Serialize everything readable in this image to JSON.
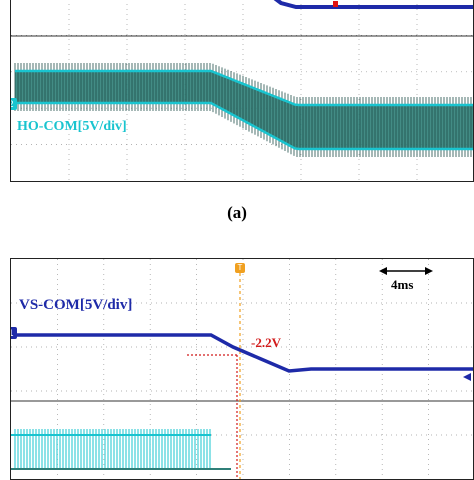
{
  "panel_a": {
    "caption": "(a)",
    "channel_label": "HO-COM[5V/div]",
    "channel_marker": "2",
    "colors": {
      "ho_fill": "#2f7f78",
      "ho_edge": "#19c4cf",
      "vs_trace": "#1e2aa8",
      "marker_red": "#e01010"
    }
  },
  "panel_b": {
    "channel_label": "VS-COM[5V/div]",
    "channel_marker": "1",
    "trigger_marker": "T",
    "annotation": "-2.2V",
    "time_scale": "4ms",
    "colors": {
      "vs_trace": "#1e2aa8",
      "annotation": "#d21a1a",
      "ho_edge": "#19c4cf"
    }
  }
}
